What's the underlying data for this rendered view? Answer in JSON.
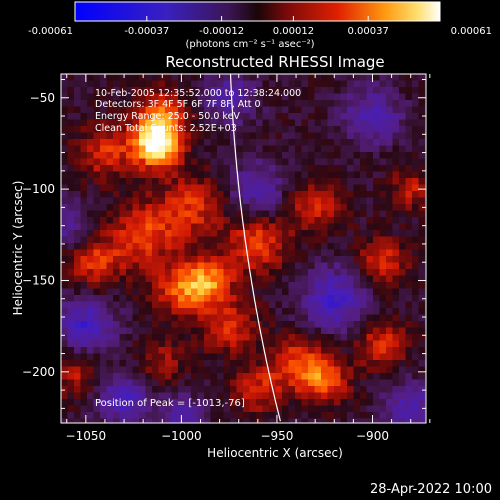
{
  "colorbar": {
    "ticks": [
      "-0.00061",
      "-0.00037",
      "-0.00012",
      "0.00012",
      "0.00037",
      "0.00061"
    ],
    "units": "(photons cm⁻² s⁻¹ asec⁻²)"
  },
  "plot": {
    "title": "Reconstructed RHESSI Image",
    "time_range": "10-Feb-2005 12:35:52.000  to 12:38:24.000",
    "detectors": "Detectors: 3F 4F 5F 6F 7F 8F, Att 0",
    "energy_range": "Energy Range: 25.0 - 50.0 keV",
    "clean_counts": "Clean    Total Counts: 2.52E+03",
    "peak_position": "Position of Peak = [-1013,-76]"
  },
  "footer": {
    "date": "28-Apr-2022 10:00"
  },
  "chart_data": {
    "type": "heatmap",
    "title": "Reconstructed RHESSI Image",
    "xlabel": "Heliocentric X (arcsec)",
    "ylabel": "Heliocentric Y (arcsec)",
    "xlim": [
      -1063,
      -872
    ],
    "ylim": [
      -228,
      -37
    ],
    "xticks": [
      -1050,
      -1000,
      -950,
      -900
    ],
    "yticks": [
      -50,
      -100,
      -150,
      -200
    ],
    "xtick_labels": [
      "−1050",
      "−1000",
      "−950",
      "−900"
    ],
    "ytick_labels": [
      "−50",
      "−100",
      "−150",
      "−200"
    ],
    "colorbar_range": [
      -0.00061,
      0.00061
    ],
    "colormap": [
      "#0000ff",
      "#4a0f8f",
      "#3a1a5a",
      "#5a1010",
      "#cc2200",
      "#ff6a00",
      "#ffcc30",
      "#ffffff"
    ],
    "limb_color": "#ffffff",
    "peak": [
      -1013,
      -76
    ],
    "sources": [
      {
        "x": -1013,
        "y": -76,
        "amp": 1.0,
        "r": 9
      },
      {
        "x": -1010,
        "y": -60,
        "amp": 0.55,
        "r": 10
      },
      {
        "x": -1040,
        "y": -80,
        "amp": 0.45,
        "r": 10
      },
      {
        "x": -995,
        "y": -110,
        "amp": 0.45,
        "r": 12
      },
      {
        "x": -1020,
        "y": -125,
        "amp": 0.5,
        "r": 12
      },
      {
        "x": -1045,
        "y": -140,
        "amp": 0.45,
        "r": 10
      },
      {
        "x": -985,
        "y": -150,
        "amp": 0.6,
        "r": 9
      },
      {
        "x": -1000,
        "y": -155,
        "amp": 0.55,
        "r": 10
      },
      {
        "x": -960,
        "y": -130,
        "amp": 0.5,
        "r": 11
      },
      {
        "x": -975,
        "y": -175,
        "amp": 0.45,
        "r": 10
      },
      {
        "x": -960,
        "y": -210,
        "amp": 0.4,
        "r": 9
      },
      {
        "x": -940,
        "y": -195,
        "amp": 0.5,
        "r": 10
      },
      {
        "x": -925,
        "y": -205,
        "amp": 0.55,
        "r": 9
      },
      {
        "x": -895,
        "y": -185,
        "amp": 0.45,
        "r": 9
      },
      {
        "x": -895,
        "y": -140,
        "amp": 0.45,
        "r": 9
      },
      {
        "x": -930,
        "y": -110,
        "amp": 0.4,
        "r": 10
      },
      {
        "x": -880,
        "y": -100,
        "amp": 0.35,
        "r": 8
      },
      {
        "x": -1055,
        "y": -200,
        "amp": 0.35,
        "r": 9
      },
      {
        "x": -1010,
        "y": -195,
        "amp": 0.3,
        "r": 9
      },
      {
        "x": -1050,
        "y": -175,
        "amp": -0.55,
        "r": 11
      },
      {
        "x": -1030,
        "y": -215,
        "amp": -0.5,
        "r": 10
      },
      {
        "x": -960,
        "y": -100,
        "amp": -0.45,
        "r": 10
      },
      {
        "x": -920,
        "y": -160,
        "amp": -0.55,
        "r": 12
      },
      {
        "x": -900,
        "y": -60,
        "amp": -0.45,
        "r": 11
      },
      {
        "x": -975,
        "y": -50,
        "amp": -0.4,
        "r": 10
      },
      {
        "x": -1060,
        "y": -120,
        "amp": -0.35,
        "r": 9
      },
      {
        "x": -880,
        "y": -220,
        "amp": -0.45,
        "r": 10
      },
      {
        "x": -1000,
        "y": -225,
        "amp": -0.4,
        "r": 9
      }
    ]
  }
}
